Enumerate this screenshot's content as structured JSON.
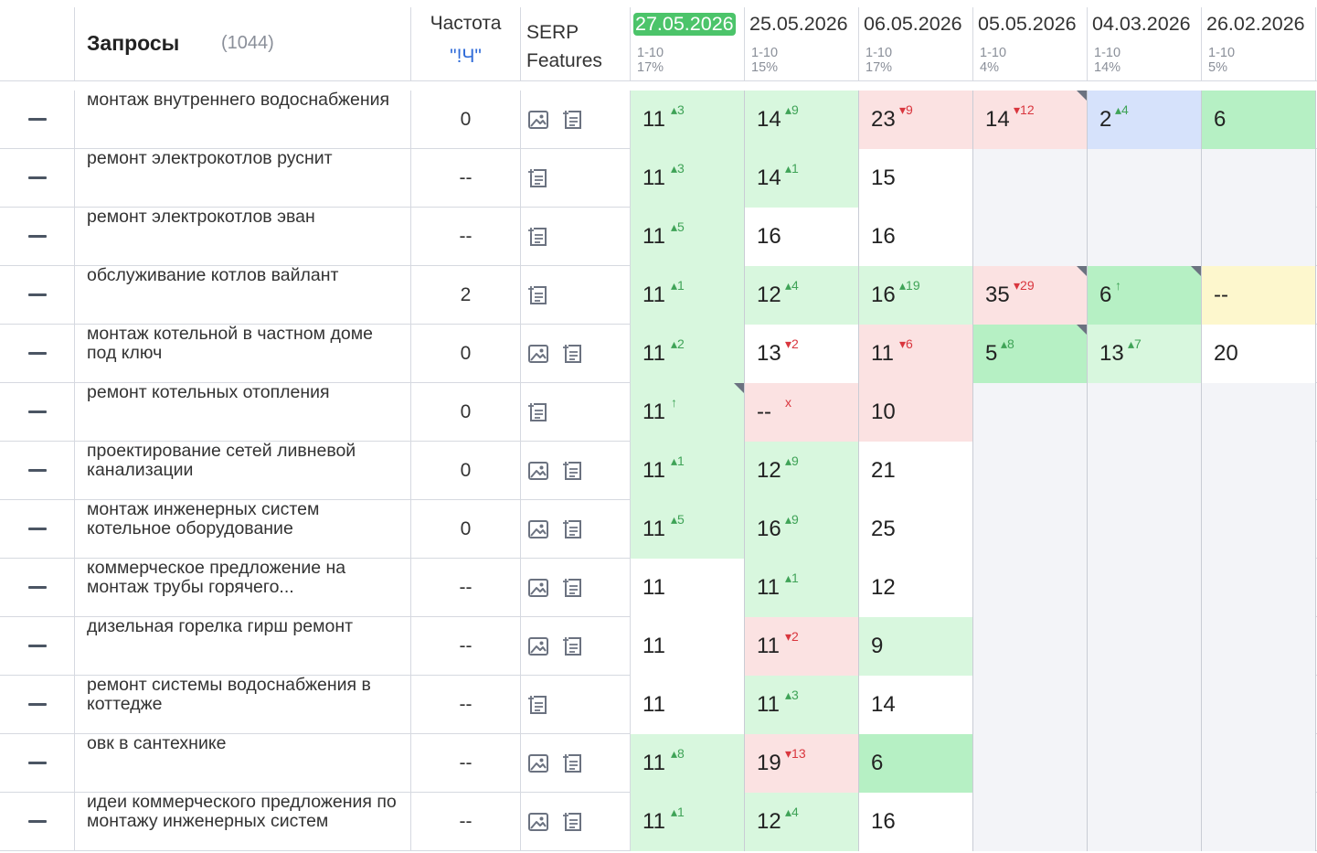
{
  "header": {
    "title": "Запросы",
    "count": "(1044)",
    "frequency_label": "Частота",
    "frequency_link": "\"!Ч\"",
    "serp_label_line1": "SERP",
    "serp_label_line2": "Features",
    "dates": [
      {
        "date": "27.05.2026",
        "range": "1-10",
        "pct": "17%",
        "active": true
      },
      {
        "date": "25.05.2026",
        "range": "1-10",
        "pct": "15%",
        "active": false
      },
      {
        "date": "06.05.2026",
        "range": "1-10",
        "pct": "17%",
        "active": false
      },
      {
        "date": "05.05.2026",
        "range": "1-10",
        "pct": "4%",
        "active": false
      },
      {
        "date": "04.03.2026",
        "range": "1-10",
        "pct": "14%",
        "active": false
      },
      {
        "date": "26.02.2026",
        "range": "1-10",
        "pct": "5%",
        "active": false
      }
    ]
  },
  "colors": {
    "active_date": "#4cc46a",
    "green": "#d8f7de",
    "green_strong": "#b6f0c4",
    "red": "#fbe2e2",
    "blue": "#d6e2fb",
    "yellow": "#fdf7cd",
    "empty": "#f3f4f8",
    "up": "#3fa357",
    "down": "#d9363e",
    "link": "#2f6bd8"
  },
  "rows": [
    {
      "query": "монтаж внутреннего водоснабжения",
      "freq": "0",
      "icons": [
        "image-icon",
        "snippet-icon"
      ],
      "cells": [
        {
          "v": "11",
          "d": "3",
          "dir": "up",
          "bg": "green"
        },
        {
          "v": "14",
          "d": "9",
          "dir": "up",
          "bg": "green"
        },
        {
          "v": "23",
          "d": "9",
          "dir": "down",
          "bg": "red"
        },
        {
          "v": "14",
          "d": "12",
          "dir": "down",
          "bg": "red",
          "corner": true
        },
        {
          "v": "2",
          "d": "4",
          "dir": "up",
          "bg": "blue"
        },
        {
          "v": "6",
          "d": "",
          "dir": "",
          "bg": "green2"
        }
      ]
    },
    {
      "query": "ремонт электрокотлов руснит",
      "freq": "--",
      "icons": [
        "snippet-icon"
      ],
      "cells": [
        {
          "v": "11",
          "d": "3",
          "dir": "up",
          "bg": "green"
        },
        {
          "v": "14",
          "d": "1",
          "dir": "up",
          "bg": "green"
        },
        {
          "v": "15",
          "d": "",
          "dir": "",
          "bg": "white"
        },
        {
          "v": "",
          "d": "",
          "dir": "",
          "bg": "empty"
        },
        {
          "v": "",
          "d": "",
          "dir": "",
          "bg": "empty"
        },
        {
          "v": "",
          "d": "",
          "dir": "",
          "bg": "empty"
        }
      ]
    },
    {
      "query": "ремонт электрокотлов эван",
      "freq": "--",
      "icons": [
        "snippet-icon"
      ],
      "cells": [
        {
          "v": "11",
          "d": "5",
          "dir": "up",
          "bg": "green"
        },
        {
          "v": "16",
          "d": "",
          "dir": "",
          "bg": "white"
        },
        {
          "v": "16",
          "d": "",
          "dir": "",
          "bg": "white"
        },
        {
          "v": "",
          "d": "",
          "dir": "",
          "bg": "empty"
        },
        {
          "v": "",
          "d": "",
          "dir": "",
          "bg": "empty"
        },
        {
          "v": "",
          "d": "",
          "dir": "",
          "bg": "empty"
        }
      ]
    },
    {
      "query": "обслуживание котлов вайлант",
      "freq": "2",
      "icons": [
        "snippet-icon"
      ],
      "cells": [
        {
          "v": "11",
          "d": "1",
          "dir": "up",
          "bg": "green"
        },
        {
          "v": "12",
          "d": "4",
          "dir": "up",
          "bg": "green"
        },
        {
          "v": "16",
          "d": "19",
          "dir": "up",
          "bg": "green"
        },
        {
          "v": "35",
          "d": "29",
          "dir": "down",
          "bg": "red",
          "corner": true
        },
        {
          "v": "6",
          "d": "↑",
          "dir": "up",
          "bg": "green2",
          "corner": true
        },
        {
          "v": "--",
          "d": "",
          "dir": "",
          "bg": "yellow"
        }
      ]
    },
    {
      "query": "монтаж котельной в частном доме под ключ",
      "freq": "0",
      "icons": [
        "image-icon",
        "snippet-icon"
      ],
      "cells": [
        {
          "v": "11",
          "d": "2",
          "dir": "up",
          "bg": "green"
        },
        {
          "v": "13",
          "d": "2",
          "dir": "down",
          "bg": "white"
        },
        {
          "v": "11",
          "d": "6",
          "dir": "down",
          "bg": "red"
        },
        {
          "v": "5",
          "d": "8",
          "dir": "up",
          "bg": "green2",
          "corner": true
        },
        {
          "v": "13",
          "d": "7",
          "dir": "up",
          "bg": "green"
        },
        {
          "v": "20",
          "d": "",
          "dir": "",
          "bg": "white"
        }
      ]
    },
    {
      "query": "ремонт котельных отопления",
      "freq": "0",
      "icons": [
        "snippet-icon"
      ],
      "cells": [
        {
          "v": "11",
          "d": "↑",
          "dir": "up",
          "bg": "green",
          "corner": true
        },
        {
          "v": "--",
          "d": "x",
          "dir": "down",
          "bg": "red"
        },
        {
          "v": "10",
          "d": "",
          "dir": "",
          "bg": "red"
        },
        {
          "v": "",
          "d": "",
          "dir": "",
          "bg": "empty"
        },
        {
          "v": "",
          "d": "",
          "dir": "",
          "bg": "empty"
        },
        {
          "v": "",
          "d": "",
          "dir": "",
          "bg": "empty"
        }
      ]
    },
    {
      "query": "проектирование сетей ливневой канализации",
      "freq": "0",
      "icons": [
        "image-icon",
        "snippet-icon"
      ],
      "cells": [
        {
          "v": "11",
          "d": "1",
          "dir": "up",
          "bg": "green"
        },
        {
          "v": "12",
          "d": "9",
          "dir": "up",
          "bg": "green"
        },
        {
          "v": "21",
          "d": "",
          "dir": "",
          "bg": "white"
        },
        {
          "v": "",
          "d": "",
          "dir": "",
          "bg": "empty"
        },
        {
          "v": "",
          "d": "",
          "dir": "",
          "bg": "empty"
        },
        {
          "v": "",
          "d": "",
          "dir": "",
          "bg": "empty"
        }
      ]
    },
    {
      "query": "монтаж инженерных систем котельное оборудование",
      "freq": "0",
      "icons": [
        "image-icon",
        "snippet-icon"
      ],
      "cells": [
        {
          "v": "11",
          "d": "5",
          "dir": "up",
          "bg": "green"
        },
        {
          "v": "16",
          "d": "9",
          "dir": "up",
          "bg": "green"
        },
        {
          "v": "25",
          "d": "",
          "dir": "",
          "bg": "white"
        },
        {
          "v": "",
          "d": "",
          "dir": "",
          "bg": "empty"
        },
        {
          "v": "",
          "d": "",
          "dir": "",
          "bg": "empty"
        },
        {
          "v": "",
          "d": "",
          "dir": "",
          "bg": "empty"
        }
      ]
    },
    {
      "query": "коммерческое предложение на монтаж трубы горячего...",
      "freq": "--",
      "icons": [
        "image-icon",
        "snippet-icon"
      ],
      "cells": [
        {
          "v": "11",
          "d": "",
          "dir": "",
          "bg": "white"
        },
        {
          "v": "11",
          "d": "1",
          "dir": "up",
          "bg": "green"
        },
        {
          "v": "12",
          "d": "",
          "dir": "",
          "bg": "white"
        },
        {
          "v": "",
          "d": "",
          "dir": "",
          "bg": "empty"
        },
        {
          "v": "",
          "d": "",
          "dir": "",
          "bg": "empty"
        },
        {
          "v": "",
          "d": "",
          "dir": "",
          "bg": "empty"
        }
      ]
    },
    {
      "query": "дизельная горелка гирш ремонт",
      "freq": "--",
      "icons": [
        "image-icon",
        "snippet-icon"
      ],
      "cells": [
        {
          "v": "11",
          "d": "",
          "dir": "",
          "bg": "white"
        },
        {
          "v": "11",
          "d": "2",
          "dir": "down",
          "bg": "red"
        },
        {
          "v": "9",
          "d": "",
          "dir": "",
          "bg": "green"
        },
        {
          "v": "",
          "d": "",
          "dir": "",
          "bg": "empty"
        },
        {
          "v": "",
          "d": "",
          "dir": "",
          "bg": "empty"
        },
        {
          "v": "",
          "d": "",
          "dir": "",
          "bg": "empty"
        }
      ]
    },
    {
      "query": "ремонт системы водоснабжения в коттедже",
      "freq": "--",
      "icons": [
        "snippet-icon"
      ],
      "cells": [
        {
          "v": "11",
          "d": "",
          "dir": "",
          "bg": "white"
        },
        {
          "v": "11",
          "d": "3",
          "dir": "up",
          "bg": "green"
        },
        {
          "v": "14",
          "d": "",
          "dir": "",
          "bg": "white"
        },
        {
          "v": "",
          "d": "",
          "dir": "",
          "bg": "empty"
        },
        {
          "v": "",
          "d": "",
          "dir": "",
          "bg": "empty"
        },
        {
          "v": "",
          "d": "",
          "dir": "",
          "bg": "empty"
        }
      ]
    },
    {
      "query": "овк в сантехнике",
      "freq": "--",
      "icons": [
        "image-icon",
        "snippet-icon"
      ],
      "cells": [
        {
          "v": "11",
          "d": "8",
          "dir": "up",
          "bg": "green"
        },
        {
          "v": "19",
          "d": "13",
          "dir": "down",
          "bg": "red"
        },
        {
          "v": "6",
          "d": "",
          "dir": "",
          "bg": "green2"
        },
        {
          "v": "",
          "d": "",
          "dir": "",
          "bg": "empty"
        },
        {
          "v": "",
          "d": "",
          "dir": "",
          "bg": "empty"
        },
        {
          "v": "",
          "d": "",
          "dir": "",
          "bg": "empty"
        }
      ]
    },
    {
      "query": "идеи коммерческого предложения по монтажу инженерных систем",
      "freq": "--",
      "icons": [
        "image-icon",
        "snippet-icon"
      ],
      "cells": [
        {
          "v": "11",
          "d": "1",
          "dir": "up",
          "bg": "green"
        },
        {
          "v": "12",
          "d": "4",
          "dir": "up",
          "bg": "green"
        },
        {
          "v": "16",
          "d": "",
          "dir": "",
          "bg": "white"
        },
        {
          "v": "",
          "d": "",
          "dir": "",
          "bg": "empty"
        },
        {
          "v": "",
          "d": "",
          "dir": "",
          "bg": "empty"
        },
        {
          "v": "",
          "d": "",
          "dir": "",
          "bg": "empty"
        }
      ]
    }
  ]
}
